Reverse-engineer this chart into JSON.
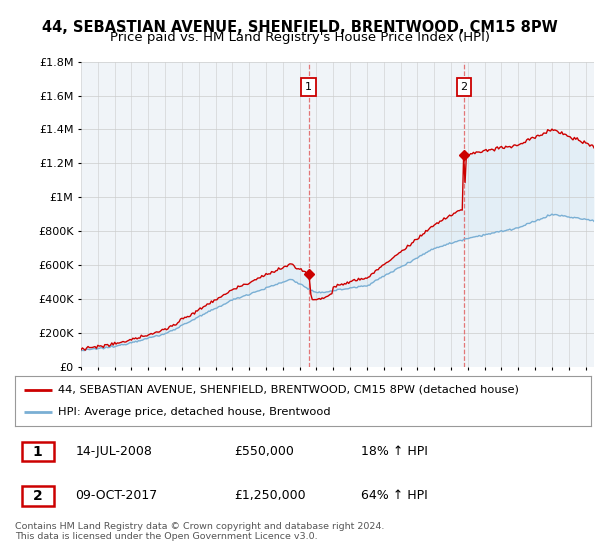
{
  "title": "44, SEBASTIAN AVENUE, SHENFIELD, BRENTWOOD, CM15 8PW",
  "subtitle": "Price paid vs. HM Land Registry's House Price Index (HPI)",
  "line1_label": "44, SEBASTIAN AVENUE, SHENFIELD, BRENTWOOD, CM15 8PW (detached house)",
  "line2_label": "HPI: Average price, detached house, Brentwood",
  "line1_color": "#cc0000",
  "line2_color": "#7aafd4",
  "fill_color": "#daeaf5",
  "vline_color": "#e06060",
  "marker1_date": 2008.54,
  "marker2_date": 2017.77,
  "marker1_price": 550000,
  "marker2_price": 1250000,
  "annotation1": [
    "1",
    "14-JUL-2008",
    "£550,000",
    "18% ↑ HPI"
  ],
  "annotation2": [
    "2",
    "09-OCT-2017",
    "£1,250,000",
    "64% ↑ HPI"
  ],
  "ylim": [
    0,
    1800000
  ],
  "xlim_start": 1995.0,
  "xlim_end": 2025.5,
  "background_color": "#ffffff",
  "plot_bg_color": "#f0f4f8",
  "footer": "Contains HM Land Registry data © Crown copyright and database right 2024.\nThis data is licensed under the Open Government Licence v3.0.",
  "title_fontsize": 10.5,
  "subtitle_fontsize": 9.5,
  "box_color": "#cc0000"
}
